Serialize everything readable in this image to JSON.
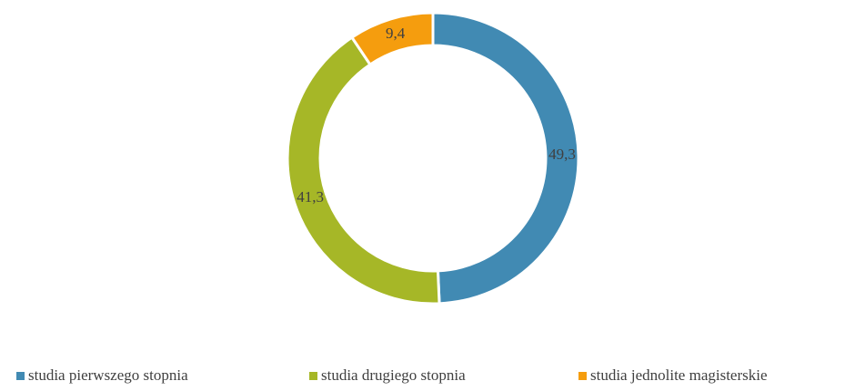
{
  "chart_data": {
    "type": "donut",
    "categories": [
      "studia pierwszego stopnia",
      "studia drugiego stopnia",
      "studia jednolite magisterskie"
    ],
    "values": [
      49.3,
      41.3,
      9.4
    ],
    "value_labels": [
      "49,3",
      "41,3",
      "9,4"
    ],
    "colors": [
      "#418ab3",
      "#a6b727",
      "#f59d0e"
    ],
    "legend": "bottom"
  }
}
